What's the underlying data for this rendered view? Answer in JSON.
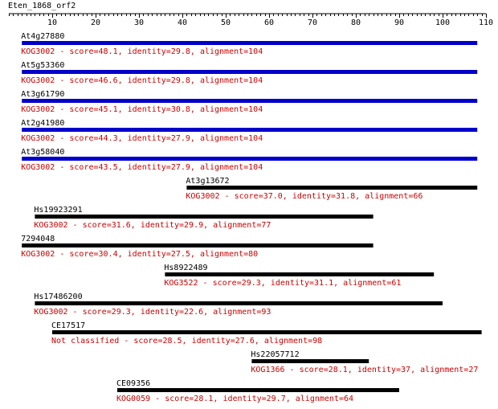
{
  "query": {
    "title": "Eten_1868_orf2",
    "length": 110
  },
  "axis": {
    "ticks": [
      10,
      20,
      30,
      40,
      50,
      60,
      70,
      80,
      90,
      100,
      110
    ]
  },
  "colors": {
    "top_hit_bar": "#0000cc",
    "hit_bar": "#000000",
    "hit_name": "#000000",
    "hit_desc": "#cc0000",
    "axis": "#000000"
  },
  "hits": [
    {
      "name": "At4g27880",
      "desc": "KOG3002 - score=48.1, identity=29.8, alignment=104",
      "start": 3,
      "end": 108,
      "top": true
    },
    {
      "name": "At5g53360",
      "desc": "KOG3002 - score=46.6, identity=29.8, alignment=104",
      "start": 3,
      "end": 108,
      "top": true
    },
    {
      "name": "At3g61790",
      "desc": "KOG3002 - score=45.1, identity=30.8, alignment=104",
      "start": 3,
      "end": 108,
      "top": true
    },
    {
      "name": "At2g41980",
      "desc": "KOG3002 - score=44.3, identity=27.9, alignment=104",
      "start": 3,
      "end": 108,
      "top": true
    },
    {
      "name": "At3g58040",
      "desc": "KOG3002 - score=43.5, identity=27.9, alignment=104",
      "start": 3,
      "end": 108,
      "top": true
    },
    {
      "name": "At3g13672",
      "desc": "KOG3002 - score=37.0, identity=31.8, alignment=66",
      "start": 41,
      "end": 108,
      "top": false
    },
    {
      "name": "Hs19923291",
      "desc": "KOG3002 - score=31.6, identity=29.9, alignment=77",
      "start": 6,
      "end": 84,
      "top": false
    },
    {
      "name": "7294048",
      "desc": "KOG3002 - score=30.4, identity=27.5, alignment=80",
      "start": 3,
      "end": 84,
      "top": false
    },
    {
      "name": "Hs8922489",
      "desc": "KOG3522 - score=29.3, identity=31.1, alignment=61",
      "start": 36,
      "end": 98,
      "top": false
    },
    {
      "name": "Hs17486200",
      "desc": "KOG3002 - score=29.3, identity=22.6, alignment=93",
      "start": 6,
      "end": 100,
      "top": false
    },
    {
      "name": "CE17517",
      "desc": "Not classified - score=28.5, identity=27.6, alignment=98",
      "start": 10,
      "end": 109,
      "top": false
    },
    {
      "name": "Hs22057712",
      "desc": "KOG1366 - score=28.1, identity=37, alignment=27",
      "start": 56,
      "end": 83,
      "top": false
    },
    {
      "name": "CE09356",
      "desc": "KOG0059 - score=28.1, identity=29.7, alignment=64",
      "start": 25,
      "end": 90,
      "top": false
    }
  ]
}
